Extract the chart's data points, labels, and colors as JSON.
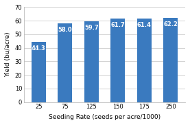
{
  "categories": [
    "25",
    "75",
    "125",
    "150",
    "175",
    "250"
  ],
  "values": [
    44.3,
    58.0,
    59.7,
    61.7,
    61.4,
    62.2
  ],
  "bar_color": "#3a7abf",
  "xlabel": "Seeding Rate (seeds per acre/1000)",
  "ylabel": "Yield (bu/acre)",
  "ylim": [
    0,
    70
  ],
  "yticks": [
    0,
    10,
    20,
    30,
    40,
    50,
    60,
    70
  ],
  "label_color": "white",
  "label_fontsize": 6.0,
  "axis_fontsize": 6.5,
  "tick_fontsize": 6.0,
  "background_color": "#ffffff",
  "plot_bg_color": "#ffffff",
  "grid_color": "#cccccc",
  "bar_width": 0.55
}
